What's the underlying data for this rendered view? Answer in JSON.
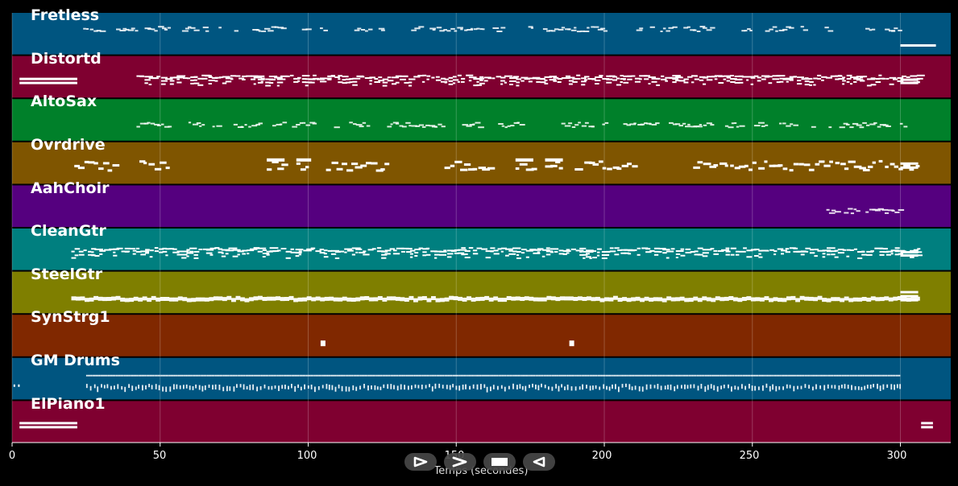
{
  "chart_data": {
    "type": "piano-roll",
    "xlabel": "Temps (secondes)",
    "xlim": [
      0,
      317
    ],
    "x_ticks": [
      0,
      50,
      100,
      150,
      200,
      250,
      300
    ],
    "tracks": [
      {
        "name": "Fretless",
        "color": "#005580",
        "active_range": [
          24,
          300
        ],
        "style": "sparse-line"
      },
      {
        "name": "Distortd",
        "color": "#7f0030",
        "active_range": [
          42,
          306
        ],
        "style": "dense-chords"
      },
      {
        "name": "AltoSax",
        "color": "#00802a",
        "active_range": [
          42,
          303
        ],
        "style": "sparse-line"
      },
      {
        "name": "Ovrdrive",
        "color": "#7f5500",
        "active_range": [
          21,
          306
        ],
        "style": "blocks"
      },
      {
        "name": "AahChoir",
        "color": "#55007f",
        "active_range": [
          275,
          303
        ],
        "style": "sparse-line"
      },
      {
        "name": "CleanGtr",
        "color": "#007f7f",
        "active_range": [
          20,
          306
        ],
        "style": "dense-chords"
      },
      {
        "name": "SteelGtr",
        "color": "#7f7f00",
        "active_range": [
          20,
          306
        ],
        "style": "band"
      },
      {
        "name": "SynStrg1",
        "color": "#802800",
        "notes_at": [
          105,
          189
        ],
        "style": "points"
      },
      {
        "name": "GM Drums",
        "color": "#005580",
        "active_range": [
          25,
          300
        ],
        "style": "drums"
      },
      {
        "name": "ElPiano1",
        "color": "#7f0030",
        "notes_at": [],
        "style": "edges"
      }
    ]
  },
  "controls": [
    {
      "name": "play",
      "icon": "play-outline-icon"
    },
    {
      "name": "forward",
      "icon": "chevron-right-icon"
    },
    {
      "name": "stop",
      "icon": "stop-icon"
    },
    {
      "name": "rewind",
      "icon": "rewind-outline-icon"
    }
  ]
}
